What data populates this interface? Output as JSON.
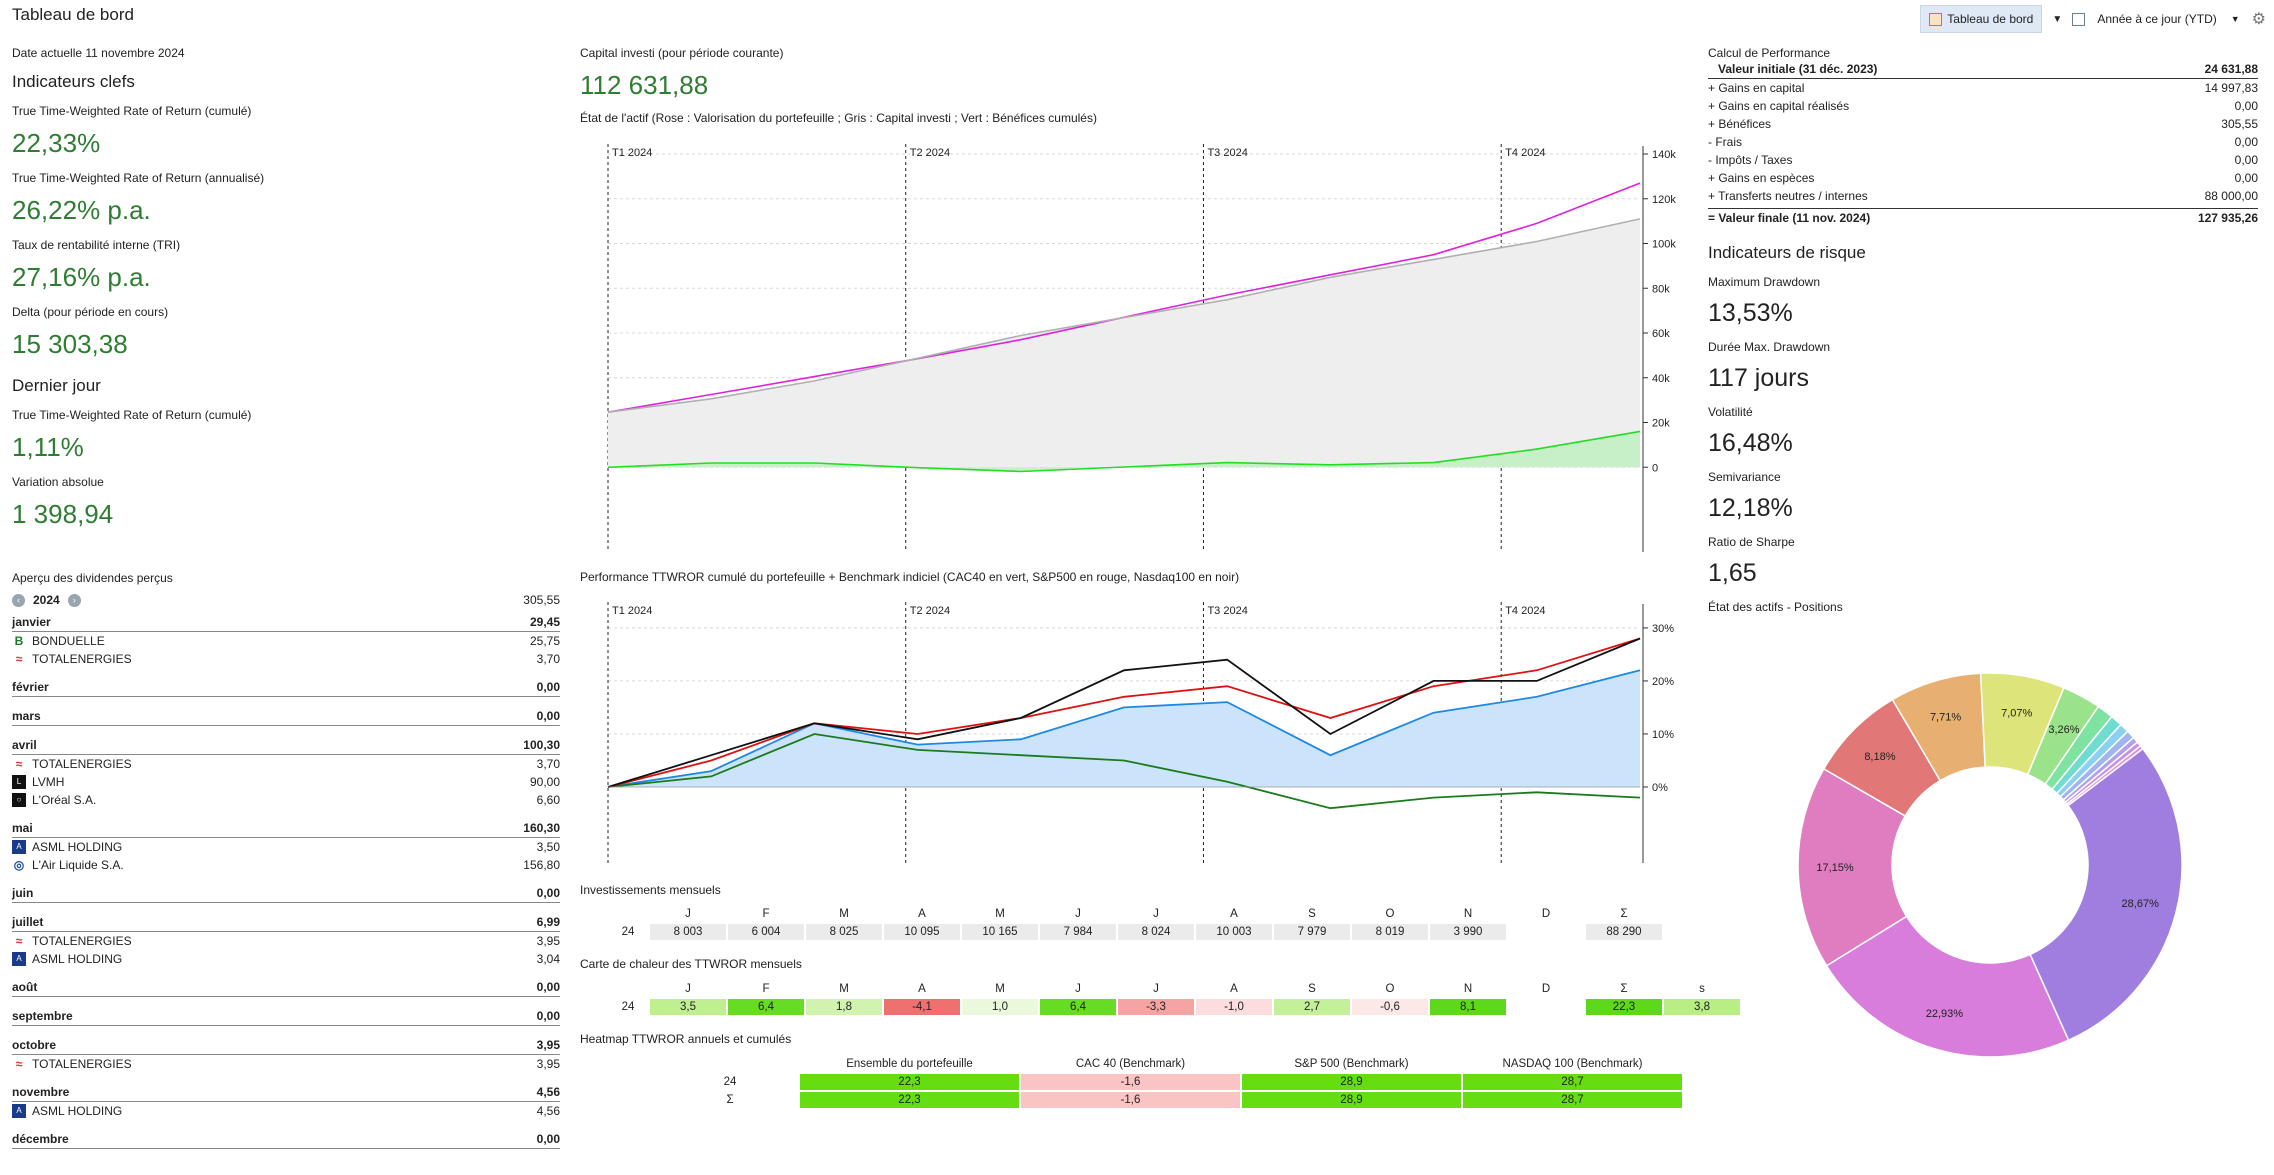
{
  "window": {
    "title": "Tableau de bord"
  },
  "toolbar": {
    "dashboard_label": "Tableau de bord",
    "period_label": "Année à ce jour (YTD)"
  },
  "left": {
    "date_label": "Date actuelle 11 novembre 2024",
    "kpi_title": "Indicateurs clefs",
    "kpis": [
      {
        "label": "True Time-Weighted Rate of Return (cumulé)",
        "value": "22,33%"
      },
      {
        "label": "True Time-Weighted Rate of Return (annualisé)",
        "value": "26,22% p.a."
      },
      {
        "label": "Taux de rentabilité interne (TRI)",
        "value": "27,16% p.a."
      },
      {
        "label": "Delta (pour période en cours)",
        "value": "15 303,38"
      }
    ],
    "lastday_title": "Dernier jour",
    "lastday": [
      {
        "label": "True Time-Weighted Rate of Return (cumulé)",
        "value": "1,11%"
      },
      {
        "label": "Variation absolue",
        "value": "1 398,94"
      }
    ],
    "dividends": {
      "title": "Aperçu des dividendes perçus",
      "year": "2024",
      "total": "305,55",
      "months": [
        {
          "name": "janvier",
          "total": "29,45",
          "items": [
            {
              "name": "BONDUELLE",
              "value": "25,75",
              "logo": "bonduelle-logo"
            },
            {
              "name": "TOTALENERGIES",
              "value": "3,70",
              "logo": "totalenergies-logo"
            }
          ]
        },
        {
          "name": "février",
          "total": "0,00",
          "items": []
        },
        {
          "name": "mars",
          "total": "0,00",
          "items": []
        },
        {
          "name": "avril",
          "total": "100,30",
          "items": [
            {
              "name": "TOTALENERGIES",
              "value": "3,70",
              "logo": "totalenergies-logo"
            },
            {
              "name": "LVMH",
              "value": "90,00",
              "logo": "lvmh-logo"
            },
            {
              "name": "L'Oréal S.A.",
              "value": "6,60",
              "logo": "loreal-logo"
            }
          ]
        },
        {
          "name": "mai",
          "total": "160,30",
          "items": [
            {
              "name": "ASML HOLDING",
              "value": "3,50",
              "logo": "asml-logo"
            },
            {
              "name": "L'Air Liquide S.A.",
              "value": "156,80",
              "logo": "airliquide-logo"
            }
          ]
        },
        {
          "name": "juin",
          "total": "0,00",
          "items": []
        },
        {
          "name": "juillet",
          "total": "6,99",
          "items": [
            {
              "name": "TOTALENERGIES",
              "value": "3,95",
              "logo": "totalenergies-logo"
            },
            {
              "name": "ASML HOLDING",
              "value": "3,04",
              "logo": "asml-logo"
            }
          ]
        },
        {
          "name": "août",
          "total": "0,00",
          "items": []
        },
        {
          "name": "septembre",
          "total": "0,00",
          "items": []
        },
        {
          "name": "octobre",
          "total": "3,95",
          "items": [
            {
              "name": "TOTALENERGIES",
              "value": "3,95",
              "logo": "totalenergies-logo"
            }
          ]
        },
        {
          "name": "novembre",
          "total": "4,56",
          "items": [
            {
              "name": "ASML HOLDING",
              "value": "4,56",
              "logo": "asml-logo"
            }
          ]
        },
        {
          "name": "décembre",
          "total": "0,00",
          "items": []
        }
      ]
    }
  },
  "middle": {
    "capital_label": "Capital investi (pour période courante)",
    "capital_value": "112 631,88",
    "chart1_title": "État de l'actif (Rose : Valorisation du portefeuille ; Gris : Capital investi ; Vert : Bénéfices cumulés)",
    "chart2_title": "Performance TTWROR cumulé du portefeuille + Benchmark indiciel (CAC40 en vert, S&P500 en rouge, Nasdaq100 en noir)",
    "monthly_title": "Investissements mensuels",
    "heatmap_title": "Carte de chaleur des TTWROR mensuels",
    "yearly_title": "Heatmap TTWROR annuels et cumulés",
    "month_headers": [
      "J",
      "F",
      "M",
      "A",
      "M",
      "J",
      "J",
      "A",
      "S",
      "O",
      "N",
      "D",
      "Σ"
    ],
    "heat_headers": [
      "J",
      "F",
      "M",
      "A",
      "M",
      "J",
      "J",
      "A",
      "S",
      "O",
      "N",
      "D",
      "Σ",
      "s"
    ],
    "monthly": {
      "year": "24",
      "values": [
        "8 003",
        "6 004",
        "8 025",
        "10 095",
        "10 165",
        "7 984",
        "8 024",
        "10 003",
        "7 979",
        "8 019",
        "3 990",
        "",
        "88 290"
      ]
    },
    "heatmap": {
      "year": "24",
      "values": [
        "3,5",
        "6,4",
        "1,8",
        "-4,1",
        "1,0",
        "6,4",
        "-3,3",
        "-1,0",
        "2,7",
        "-0,6",
        "8,1",
        "",
        "22,3",
        "3,8"
      ],
      "colors": [
        "#bfef8f",
        "#66dd22",
        "#d2f3b0",
        "#f07070",
        "#eaf9dc",
        "#66dd22",
        "#f5a3a3",
        "#fcdcdc",
        "#c4f09a",
        "#fde8e8",
        "#5ed81a",
        "#ffffff",
        "#5ed81a",
        "#b8ee84"
      ]
    },
    "yearly": {
      "headers": [
        "Ensemble du portefeuille",
        "CAC 40 (Benchmark)",
        "S&P 500 (Benchmark)",
        "NASDAQ 100 (Benchmark)"
      ],
      "rows": [
        {
          "label": "24",
          "values": [
            "22,3",
            "-1,6",
            "28,9",
            "28,7"
          ]
        },
        {
          "label": "Σ",
          "values": [
            "22,3",
            "-1,6",
            "28,9",
            "28,7"
          ]
        }
      ],
      "colors": [
        "#66dd11",
        "#fbc4c4",
        "#66dd11",
        "#66dd11"
      ]
    }
  },
  "right": {
    "perf_title": "Calcul de Performance",
    "perf_rows": [
      {
        "label": "Valeur initiale (31 déc. 2023)",
        "value": "24 631,88"
      },
      {
        "label": "+ Gains en capital",
        "value": "14 997,83"
      },
      {
        "label": "+ Gains en capital réalisés",
        "value": "0,00"
      },
      {
        "label": "+ Bénéfices",
        "value": "305,55"
      },
      {
        "label": "-  Frais",
        "value": "0,00"
      },
      {
        "label": "-  Impôts / Taxes",
        "value": "0,00"
      },
      {
        "label": "+ Gains en espèces",
        "value": "0,00"
      },
      {
        "label": "+ Transferts neutres / internes",
        "value": "88 000,00"
      },
      {
        "label": "= Valeur finale (11 nov. 2024)",
        "value": "127 935,26"
      }
    ],
    "risk_title": "Indicateurs de risque",
    "risk": [
      {
        "label": "Maximum Drawdown",
        "value": "13,53%"
      },
      {
        "label": "Durée Max. Drawdown",
        "value": "117 jours"
      },
      {
        "label": "Volatilité",
        "value": "16,48%"
      },
      {
        "label": "Semivariance",
        "value": "12,18%"
      },
      {
        "label": "Ratio de Sharpe",
        "value": "1,65"
      }
    ],
    "positions_title": "État des actifs - Positions"
  },
  "chart_data": [
    {
      "type": "line",
      "title": "État de l'actif (Rose : Valorisation du portefeuille ; Gris : Capital investi ; Vert : Bénéfices cumulés)",
      "quarter_labels": [
        "T1 2024",
        "T2 2024",
        "T3 2024",
        "T4 2024"
      ],
      "y_ticks": [
        "140k",
        "120k",
        "100k",
        "80k",
        "60k",
        "40k",
        "20k",
        "0"
      ],
      "ylim": [
        -20000,
        140000
      ],
      "x": [
        0,
        1,
        2,
        3,
        4,
        5,
        6,
        7,
        8,
        9,
        10
      ],
      "series": [
        {
          "values": [
            24600,
            32500,
            40500,
            48500,
            57000,
            67000,
            77000,
            86000,
            95000,
            109000,
            127000
          ],
          "color": "#e020e0"
        },
        {
          "values": [
            24600,
            30600,
            38600,
            48700,
            58900,
            66900,
            74900,
            84900,
            92900,
            100900,
            111000
          ],
          "color": "#b0b0b0"
        },
        {
          "values": [
            0,
            1900,
            1900,
            -200,
            -1900,
            100,
            2100,
            1100,
            2100,
            8100,
            16000
          ],
          "color": "#22dd22"
        }
      ]
    },
    {
      "type": "line",
      "title": "Performance TTWROR cumulé du portefeuille + Benchmark indiciel (CAC40 en vert, S&P500 en rouge, Nasdaq100 en noir)",
      "quarter_labels": [
        "T1 2024",
        "T2 2024",
        "T3 2024",
        "T4 2024"
      ],
      "y_ticks": [
        "30%",
        "20%",
        "10%",
        "0%"
      ],
      "ylim": [
        -10,
        33
      ],
      "x": [
        0,
        1,
        2,
        3,
        4,
        5,
        6,
        7,
        8,
        9,
        10
      ],
      "series": [
        {
          "values": [
            0,
            3,
            12,
            8,
            9,
            15,
            16,
            6,
            14,
            17,
            22
          ],
          "color": "#1e88e5"
        },
        {
          "values": [
            0,
            2,
            10,
            7,
            6,
            5,
            1,
            -4,
            -2,
            -1,
            -2
          ],
          "color": "#1b7a1b"
        },
        {
          "values": [
            0,
            5,
            12,
            10,
            13,
            17,
            19,
            13,
            19,
            22,
            28
          ],
          "color": "#e01010"
        },
        {
          "values": [
            0,
            6,
            12,
            9,
            13,
            22,
            24,
            10,
            20,
            20,
            28
          ],
          "color": "#111111"
        }
      ]
    },
    {
      "type": "pie",
      "title": "État des actifs - Positions",
      "labels": [
        "28,67%",
        "22,93%",
        "17,15%",
        "8,18%",
        "7,71%",
        "7,07%",
        "3,26%",
        "",
        "",
        "",
        "",
        "",
        "",
        ""
      ],
      "values": [
        28.67,
        22.93,
        17.15,
        8.18,
        7.71,
        7.07,
        3.26,
        1.4,
        1.0,
        0.8,
        0.7,
        0.5,
        0.4,
        0.3
      ],
      "colors": [
        "#a07ee0",
        "#d97ddc",
        "#e07cc0",
        "#e27777",
        "#e7b070",
        "#dde47a",
        "#9be38a",
        "#7ee3a0",
        "#70dcd0",
        "#8ad0f0",
        "#a0b4f0",
        "#b0a0ee",
        "#c98fe8",
        "#e08fd8"
      ]
    }
  ]
}
